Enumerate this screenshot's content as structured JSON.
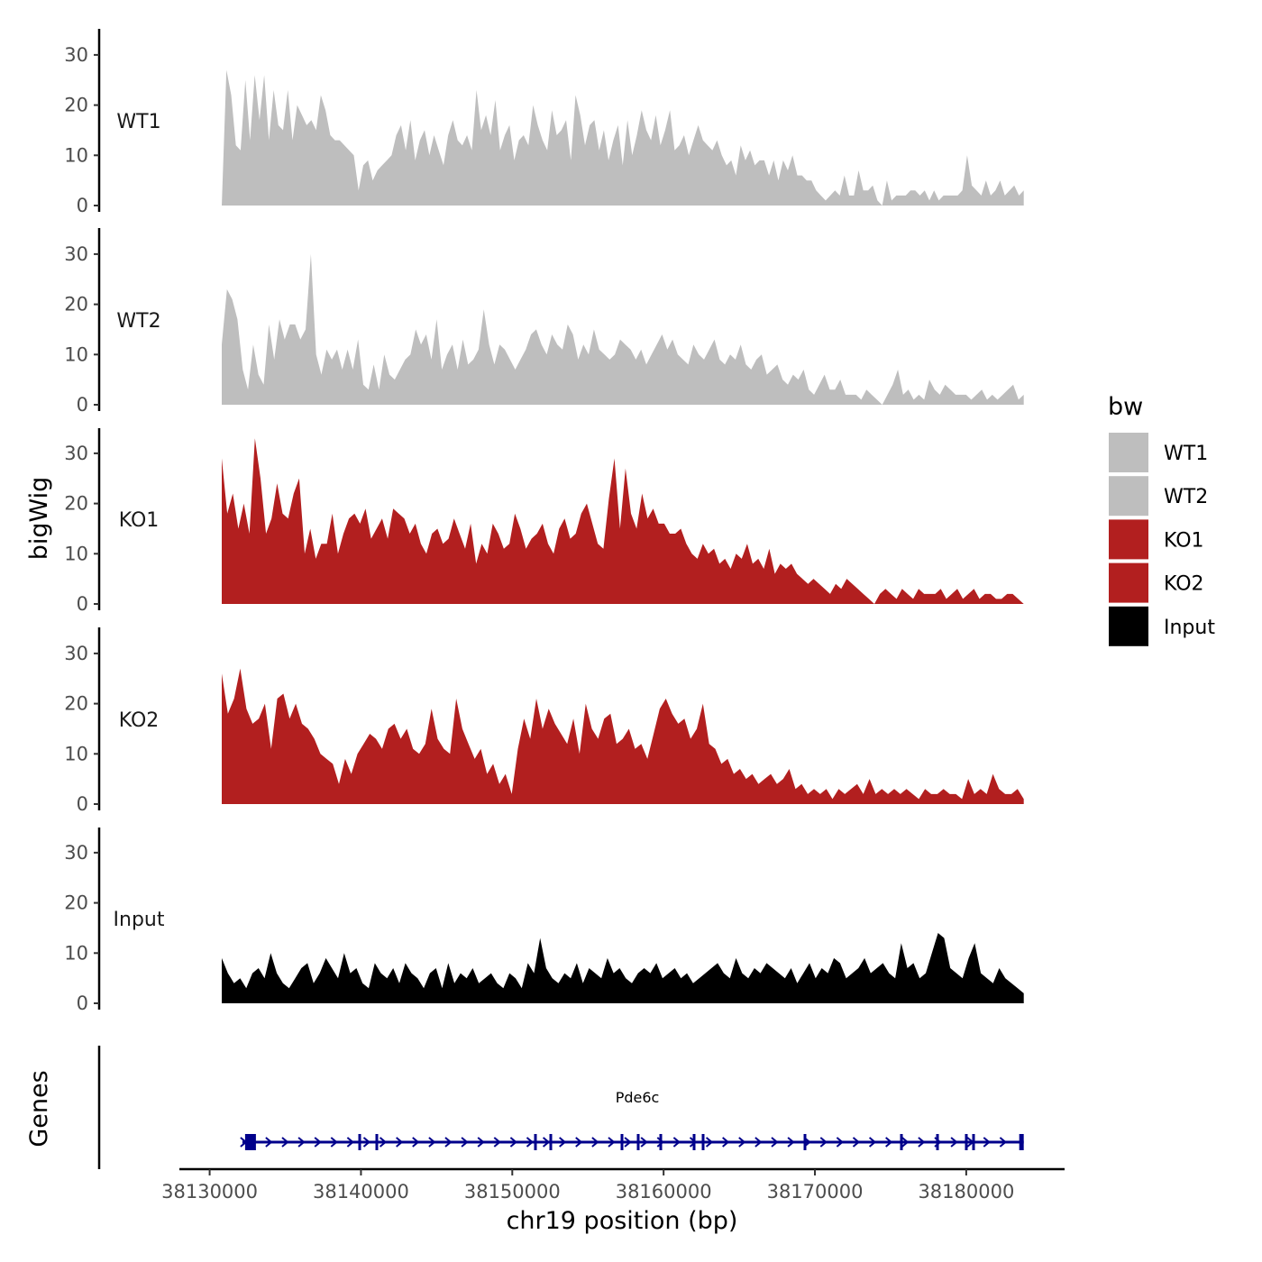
{
  "chart_data": {
    "type": "area",
    "title": "",
    "xlabel": "chr19 position (bp)",
    "ylabel": "bigWig",
    "genes_label": "Genes",
    "xlim": [
      38128000,
      38186500
    ],
    "ylim": [
      0,
      35
    ],
    "y_ticks": [
      0,
      10,
      20,
      30
    ],
    "x_ticks": [
      38130000,
      38140000,
      38150000,
      38160000,
      38170000,
      38180000
    ],
    "x_tick_labels": [
      "38130000",
      "38140000",
      "38150000",
      "38160000",
      "38170000",
      "38180000"
    ],
    "data_range": [
      38130800,
      38183800
    ],
    "legend": {
      "title": "bw",
      "position": "right",
      "entries": [
        {
          "label": "WT1",
          "color": "#bebebe"
        },
        {
          "label": "WT2",
          "color": "#bebebe"
        },
        {
          "label": "KO1",
          "color": "#b21f1f"
        },
        {
          "label": "KO2",
          "color": "#b21f1f"
        },
        {
          "label": "Input",
          "color": "#000000"
        }
      ]
    },
    "series": [
      {
        "name": "WT1",
        "color": "#bebebe",
        "values": [
          0,
          27,
          22,
          12,
          11,
          25,
          13,
          26,
          17,
          26,
          13,
          23,
          16,
          15,
          23,
          13,
          20,
          18,
          16,
          17,
          15,
          22,
          19,
          14,
          13,
          13,
          12,
          11,
          10,
          3,
          8,
          9,
          5,
          7,
          8,
          9,
          10,
          14,
          16,
          11,
          17,
          9,
          13,
          15,
          10,
          14,
          11,
          8,
          14,
          17,
          13,
          12,
          14,
          11,
          23,
          15,
          18,
          14,
          21,
          11,
          14,
          16,
          9,
          13,
          14,
          12,
          20,
          16,
          13,
          11,
          19,
          14,
          15,
          17,
          9,
          22,
          18,
          12,
          16,
          17,
          11,
          15,
          9,
          13,
          16,
          8,
          17,
          10,
          14,
          19,
          15,
          13,
          18,
          12,
          15,
          19,
          11,
          12,
          14,
          10,
          13,
          16,
          13,
          12,
          11,
          13,
          10,
          8,
          9,
          6,
          12,
          9,
          11,
          8,
          9,
          9,
          6,
          9,
          5,
          9,
          7,
          10,
          6,
          6,
          5,
          5,
          3,
          2,
          1,
          2,
          3,
          2,
          6,
          2,
          2,
          7,
          3,
          3,
          4,
          1,
          0,
          5,
          1,
          2,
          2,
          2,
          3,
          3,
          2,
          3,
          1,
          3,
          1,
          2,
          2,
          2,
          2,
          3,
          10,
          4,
          3,
          2,
          5,
          2,
          3,
          5,
          2,
          3,
          4,
          2,
          3
        ]
      },
      {
        "name": "WT2",
        "color": "#bebebe",
        "values": [
          12,
          23,
          21,
          17,
          7,
          3,
          12,
          6,
          4,
          16,
          9,
          17,
          13,
          16,
          16,
          13,
          15,
          30,
          10,
          6,
          11,
          9,
          11,
          7,
          11,
          7,
          13,
          4,
          3,
          8,
          3,
          10,
          6,
          5,
          7,
          9,
          10,
          15,
          12,
          14,
          9,
          17,
          7,
          10,
          12,
          7,
          13,
          8,
          9,
          11,
          19,
          12,
          8,
          12,
          11,
          9,
          7,
          9,
          11,
          14,
          15,
          12,
          10,
          14,
          12,
          11,
          16,
          14,
          9,
          12,
          10,
          15,
          11,
          10,
          9,
          10,
          13,
          12,
          11,
          9,
          11,
          8,
          10,
          12,
          14,
          11,
          13,
          10,
          9,
          8,
          12,
          10,
          9,
          11,
          13,
          9,
          8,
          10,
          9,
          12,
          8,
          7,
          9,
          10,
          6,
          7,
          8,
          5,
          4,
          6,
          5,
          7,
          3,
          2,
          4,
          6,
          3,
          3,
          5,
          2,
          2,
          2,
          1,
          3,
          2,
          1,
          0,
          2,
          4,
          7,
          2,
          3,
          1,
          2,
          1,
          5,
          3,
          2,
          4,
          3,
          2,
          2,
          2,
          1,
          2,
          3,
          1,
          2,
          1,
          2,
          3,
          4,
          1,
          2
        ]
      },
      {
        "name": "KO1",
        "color": "#b21f1f",
        "values": [
          29,
          18,
          22,
          15,
          20,
          14,
          33,
          25,
          14,
          17,
          24,
          18,
          17,
          22,
          25,
          10,
          15,
          9,
          12,
          12,
          18,
          10,
          14,
          17,
          18,
          16,
          19,
          13,
          15,
          17,
          13,
          19,
          18,
          17,
          14,
          16,
          12,
          10,
          14,
          15,
          12,
          13,
          17,
          14,
          11,
          16,
          8,
          12,
          10,
          16,
          14,
          11,
          12,
          18,
          15,
          11,
          13,
          14,
          16,
          12,
          10,
          15,
          17,
          13,
          14,
          18,
          20,
          16,
          12,
          11,
          21,
          29,
          15,
          27,
          18,
          15,
          22,
          17,
          19,
          16,
          16,
          14,
          14,
          15,
          12,
          10,
          9,
          12,
          10,
          11,
          8,
          9,
          7,
          10,
          9,
          12,
          8,
          9,
          7,
          11,
          6,
          8,
          7,
          8,
          6,
          5,
          4,
          5,
          4,
          3,
          2,
          4,
          3,
          5,
          4,
          3,
          2,
          1,
          0,
          2,
          3,
          2,
          1,
          3,
          2,
          1,
          3,
          2,
          2,
          2,
          3,
          1,
          2,
          3,
          1,
          2,
          3,
          1,
          2,
          2,
          1,
          1,
          2,
          2,
          1,
          0
        ]
      },
      {
        "name": "KO2",
        "color": "#b21f1f",
        "values": [
          26,
          18,
          21,
          27,
          19,
          16,
          17,
          20,
          11,
          21,
          22,
          17,
          20,
          16,
          15,
          13,
          10,
          9,
          8,
          4,
          9,
          6,
          10,
          12,
          14,
          13,
          11,
          15,
          16,
          13,
          15,
          11,
          10,
          12,
          19,
          13,
          11,
          10,
          21,
          15,
          12,
          9,
          11,
          6,
          8,
          4,
          6,
          2,
          11,
          17,
          13,
          21,
          15,
          19,
          16,
          14,
          12,
          17,
          10,
          20,
          15,
          13,
          17,
          18,
          12,
          13,
          15,
          11,
          12,
          9,
          14,
          19,
          21,
          18,
          16,
          17,
          13,
          15,
          20,
          12,
          11,
          8,
          9,
          6,
          7,
          5,
          6,
          4,
          5,
          6,
          4,
          5,
          7,
          3,
          4,
          2,
          3,
          2,
          3,
          1,
          3,
          2,
          3,
          4,
          2,
          5,
          2,
          3,
          2,
          3,
          2,
          3,
          2,
          1,
          3,
          2,
          2,
          3,
          2,
          2,
          1,
          5,
          2,
          3,
          2,
          6,
          3,
          2,
          2,
          3,
          1
        ]
      },
      {
        "name": "Input",
        "color": "#000000",
        "values": [
          9,
          6,
          4,
          5,
          3,
          6,
          7,
          5,
          10,
          6,
          4,
          3,
          5,
          7,
          8,
          4,
          6,
          9,
          7,
          5,
          10,
          6,
          7,
          4,
          3,
          8,
          6,
          5,
          7,
          4,
          8,
          6,
          5,
          3,
          6,
          7,
          3,
          8,
          4,
          6,
          5,
          7,
          4,
          5,
          6,
          4,
          3,
          6,
          5,
          3,
          8,
          6,
          13,
          7,
          5,
          4,
          6,
          5,
          8,
          4,
          7,
          6,
          5,
          9,
          6,
          7,
          5,
          4,
          6,
          7,
          6,
          8,
          5,
          6,
          7,
          5,
          6,
          4,
          5,
          6,
          7,
          8,
          6,
          5,
          9,
          6,
          5,
          7,
          6,
          8,
          7,
          6,
          5,
          7,
          4,
          6,
          8,
          5,
          7,
          6,
          9,
          8,
          5,
          6,
          7,
          9,
          6,
          7,
          8,
          6,
          5,
          12,
          7,
          8,
          5,
          6,
          10,
          14,
          13,
          7,
          6,
          5,
          9,
          12,
          6,
          5,
          4,
          7,
          5,
          4,
          3,
          2
        ]
      }
    ],
    "gene_track": {
      "gene": "Pde6c",
      "start": 38132700,
      "end": 38183800,
      "color": "#00008b"
    }
  }
}
